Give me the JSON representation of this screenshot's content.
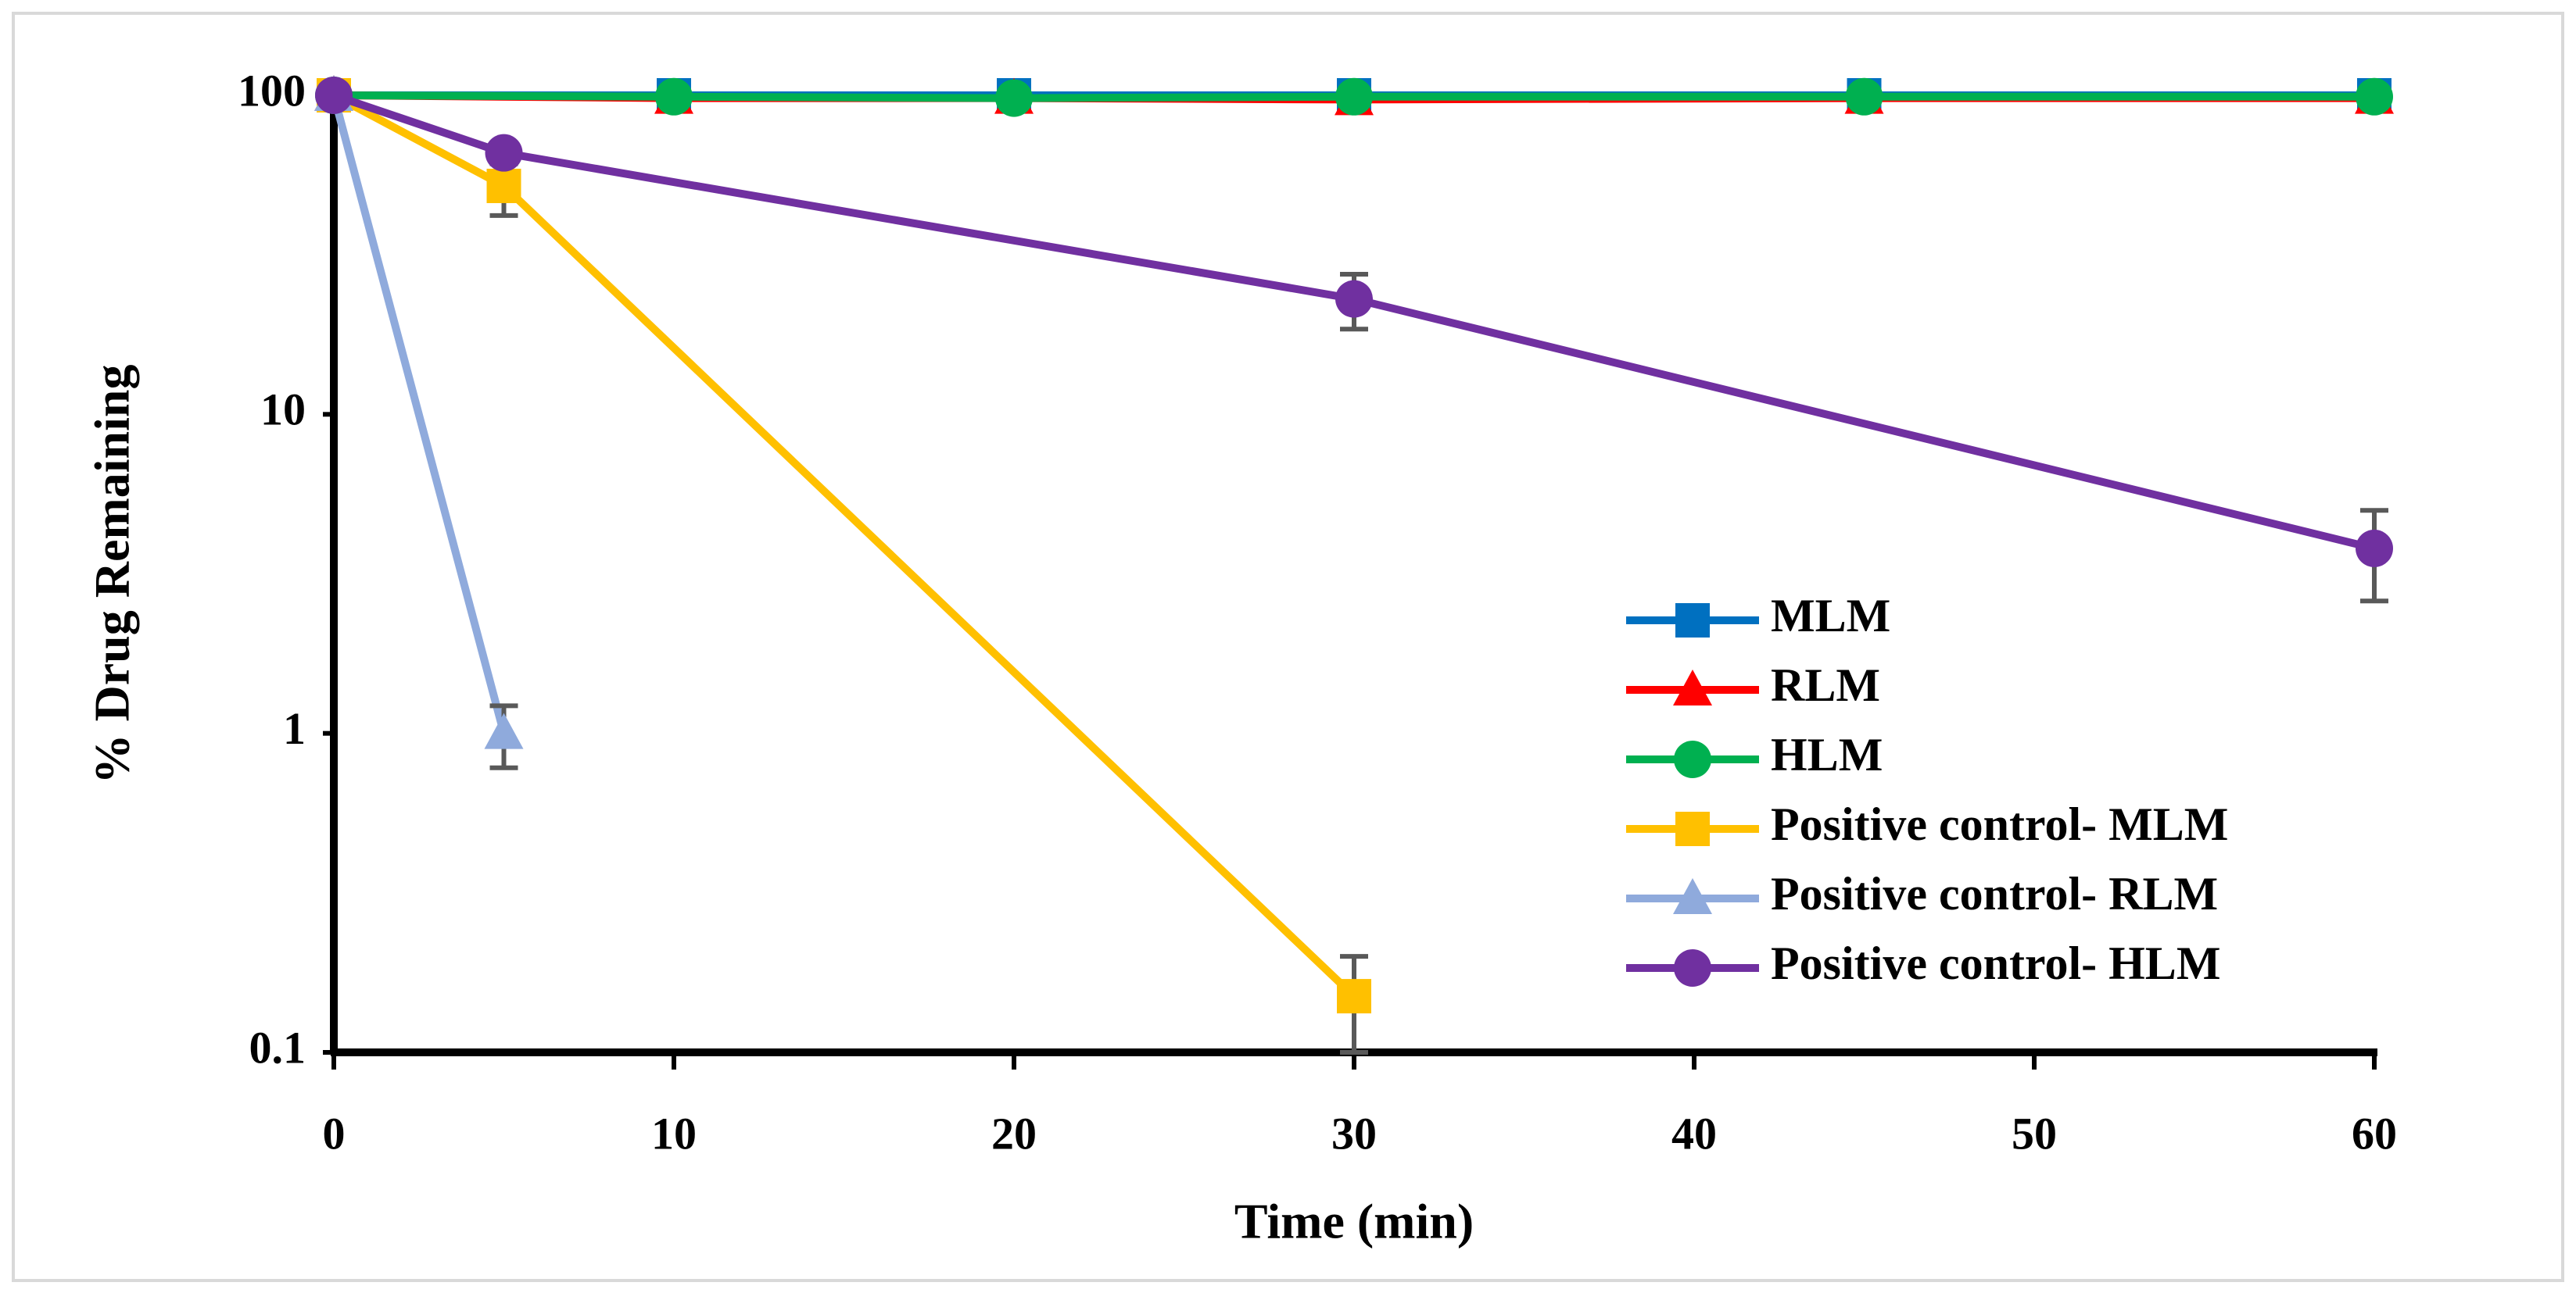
{
  "chart_data": {
    "type": "line",
    "xlabel": "Time (min)",
    "ylabel": "% Drug Remaining",
    "xlim": [
      0,
      60
    ],
    "xticks": [
      0,
      10,
      20,
      30,
      40,
      50,
      60
    ],
    "ylim": [
      0.1,
      100
    ],
    "yticks": [
      0.1,
      1,
      10,
      100
    ],
    "log_y": true,
    "grid": false,
    "legend": "lower right",
    "series": [
      {
        "name": "MLM",
        "color": "#0070c0",
        "marker": "square",
        "x": [
          0,
          10,
          20,
          30,
          45,
          60
        ],
        "values": [
          100,
          100,
          100,
          100,
          100,
          100
        ],
        "errors": [
          null,
          null,
          null,
          10,
          null,
          null
        ]
      },
      {
        "name": "RLM",
        "color": "#ff0000",
        "marker": "triangle",
        "x": [
          0,
          10,
          20,
          30,
          45,
          60
        ],
        "values": [
          100,
          98,
          98,
          97,
          98,
          98
        ],
        "errors": [
          null,
          null,
          null,
          null,
          null,
          null
        ]
      },
      {
        "name": "HLM",
        "color": "#00b050",
        "marker": "circle",
        "x": [
          0,
          10,
          20,
          30,
          45,
          60
        ],
        "values": [
          100,
          99,
          98,
          99,
          99,
          99
        ],
        "errors": [
          null,
          null,
          null,
          null,
          null,
          null
        ]
      },
      {
        "name": "Positive control- MLM",
        "color": "#ffc000",
        "marker": "square",
        "x": [
          0,
          5,
          30
        ],
        "values": [
          100,
          52,
          0.15
        ],
        "errors": [
          null,
          10,
          0.05
        ]
      },
      {
        "name": "Positive control- RLM",
        "color": "#8faadc",
        "marker": "triangle",
        "x": [
          0,
          5
        ],
        "values": [
          100,
          1
        ],
        "errors": [
          null,
          0.22
        ]
      },
      {
        "name": "Positive control- HLM",
        "color": "#7030a0",
        "marker": "circle",
        "x": [
          0,
          5,
          30,
          60
        ],
        "values": [
          100,
          66,
          23,
          3.8
        ],
        "errors": [
          null,
          5,
          4.5,
          1.2
        ]
      }
    ]
  }
}
